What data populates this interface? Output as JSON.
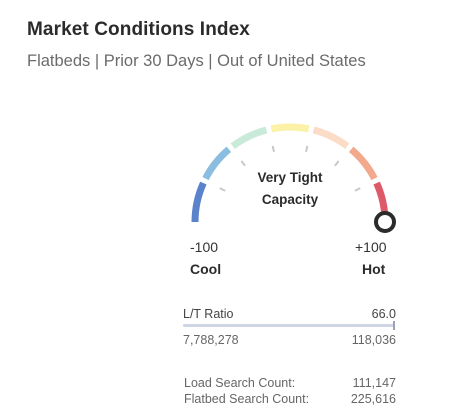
{
  "header": {
    "title": "Market Conditions Index",
    "subtitle": "Flatbeds | Prior 30 Days | Out of United States"
  },
  "gauge": {
    "status_line1": "Very Tight",
    "status_line2": "Capacity",
    "min_value": "-100",
    "min_label": "Cool",
    "max_value": "+100",
    "max_label": "Hot",
    "indicator_value": 100,
    "segment_colors": [
      "#5b83cc",
      "#8bbde0",
      "#c9ead9",
      "#fbf2a8",
      "#fbdcc6",
      "#f3a98e",
      "#dc5a6a"
    ],
    "tick_color": "#c8c8c8",
    "indicator_color": "#2b2b2b"
  },
  "stats": {
    "lt_ratio_label": "L/T Ratio",
    "lt_ratio_value": "66.0",
    "bar_fill_fraction": 1.0,
    "loads": "7,788,278",
    "trucks": "118,036",
    "load_search_label": "Load Search Count:",
    "load_search_value": "111,147",
    "flatbed_search_label": "Flatbed Search Count:",
    "flatbed_search_value": "225,616"
  }
}
